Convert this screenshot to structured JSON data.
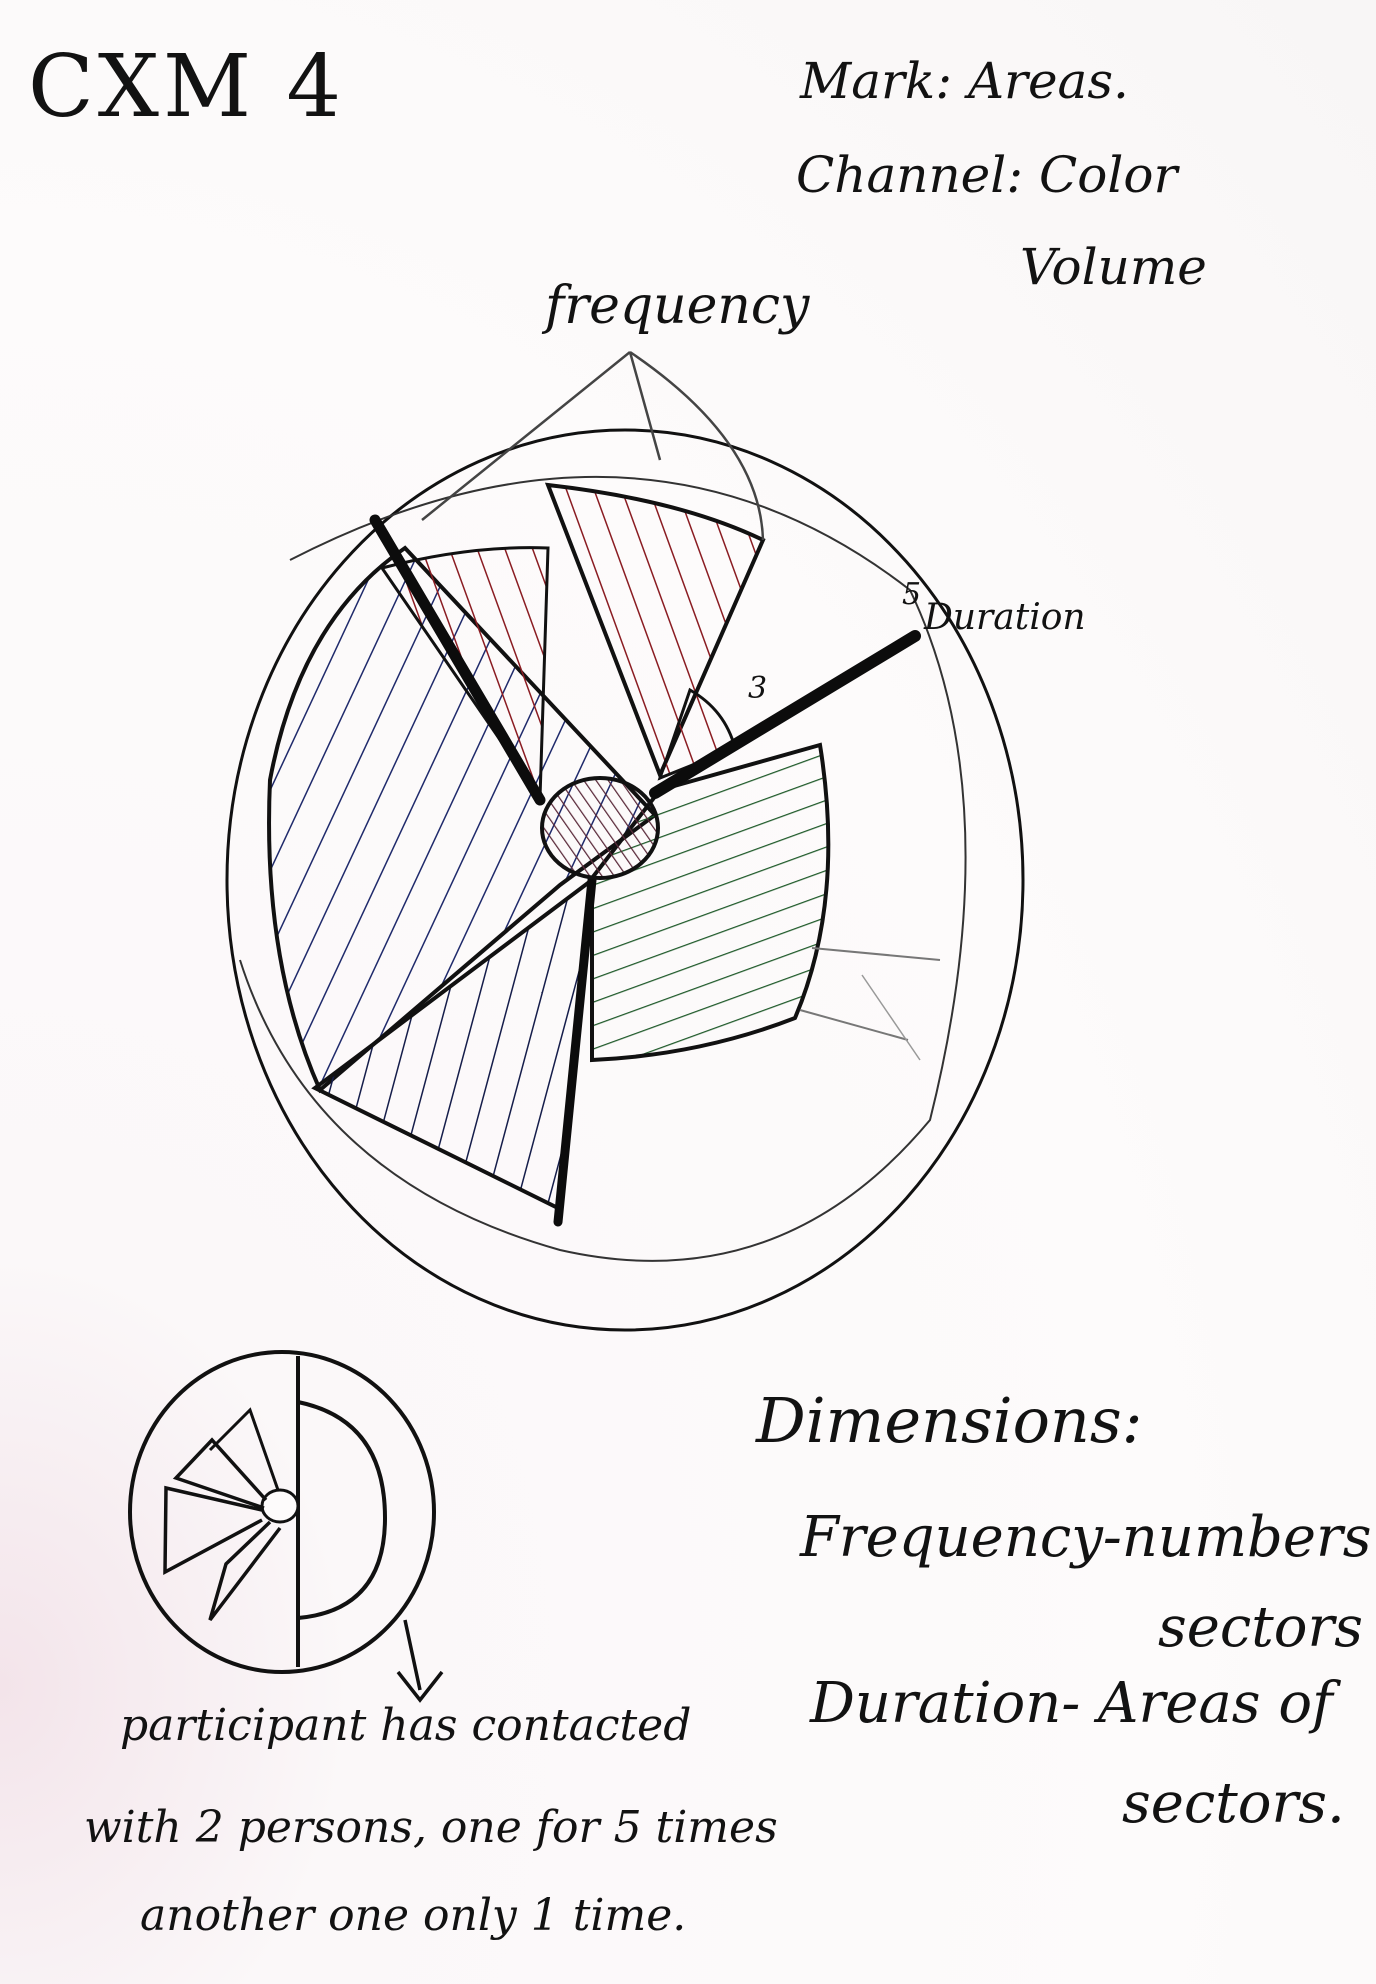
{
  "title": "CXM 4",
  "encoding": {
    "mark": "Mark: Areas.",
    "channel": "Channel: Color",
    "channel_extra": "Volume"
  },
  "diagram": {
    "frequency_label": "frequency",
    "duration_label": "Duration",
    "duration_tick_5": "5",
    "duration_tick_3": "3"
  },
  "dimensions": {
    "heading": "Dimensions:",
    "line1": "Frequency-numbers of",
    "line2": "sectors",
    "line3": "Duration- Areas of",
    "line4": "sectors."
  },
  "example_note": {
    "line1": "participant has contacted",
    "line2": "with 2 persons, one for 5 times",
    "line3": "another one only 1 time."
  },
  "colors": {
    "ink": "#111111",
    "red_hatch": "#8a1c22",
    "blue_hatch": "#1f2a6b",
    "green_hatch": "#1f5a2a",
    "pencil": "#555555"
  }
}
